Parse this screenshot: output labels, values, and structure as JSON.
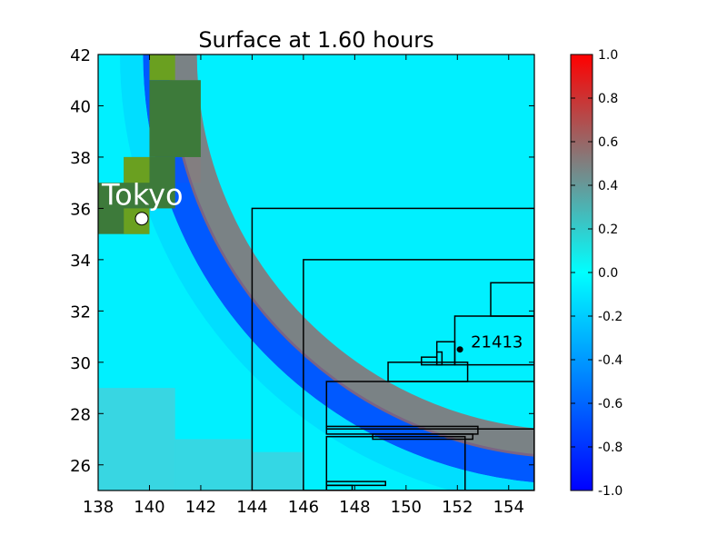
{
  "chart_data": {
    "type": "heatmap",
    "title": "Surface at 1.60 hours",
    "xlabel": "",
    "ylabel": "",
    "xlim": [
      138,
      155
    ],
    "ylim": [
      25,
      42
    ],
    "xticks": [
      138,
      140,
      142,
      144,
      146,
      148,
      150,
      152,
      154
    ],
    "yticks": [
      26,
      28,
      30,
      32,
      34,
      36,
      38,
      40,
      42
    ],
    "grid": false,
    "colorbar": {
      "vmin": -1.0,
      "vmax": 1.0,
      "ticks": [
        "-1.0",
        "-0.8",
        "-0.6",
        "-0.4",
        "-0.2",
        "0.0",
        "0.2",
        "0.4",
        "0.6",
        "0.8",
        "1.0"
      ],
      "colors": [
        "#0000ff",
        "#00ffff",
        "#ff0000"
      ]
    },
    "background_color": "#00f0ff",
    "land_color": "#3d7a3a",
    "coast_color": "#6aa020",
    "land_cells": [
      [
        140.0,
        41.0,
        1,
        1,
        "coast"
      ],
      [
        140.0,
        38.0,
        2,
        3,
        "land"
      ],
      [
        139.0,
        36.0,
        2,
        2,
        "land"
      ],
      [
        138.0,
        35.0,
        2,
        2,
        "land"
      ],
      [
        139.0,
        37.0,
        1,
        1,
        "coast"
      ],
      [
        139.0,
        35.0,
        1,
        1,
        "coast"
      ]
    ],
    "shallow_cells": [
      [
        138.0,
        25.0,
        3,
        4,
        0.18
      ],
      [
        141.0,
        25.0,
        3,
        2,
        0.15
      ],
      [
        144.0,
        25.0,
        2,
        1.5,
        0.12
      ],
      [
        141.0,
        37.0,
        1,
        3,
        0.06
      ]
    ],
    "wave_bands": [
      {
        "amp": -0.8,
        "width": 0.55,
        "offset": 0.0
      },
      {
        "amp": 0.6,
        "width": 0.55,
        "offset": -1.0
      },
      {
        "amp": -0.15,
        "width": 0.45,
        "offset": 1.0
      }
    ],
    "wave_center": [
      156.5,
      42.0
    ],
    "wave_radius": 16.2,
    "refinement_regions": [
      [
        144.0,
        155.0,
        25.0,
        36.0
      ],
      [
        146.0,
        155.0,
        25.0,
        34.0
      ],
      [
        146.9,
        155.0,
        27.4,
        29.25
      ],
      [
        146.9,
        152.8,
        27.2,
        27.5
      ],
      [
        148.7,
        152.6,
        27.0,
        27.2
      ],
      [
        146.9,
        152.3,
        24.5,
        27.1
      ],
      [
        146.9,
        149.2,
        25.2,
        25.35
      ],
      [
        146.9,
        147.9,
        25.0,
        25.2
      ],
      [
        149.3,
        152.4,
        29.25,
        30.0
      ],
      [
        150.6,
        151.2,
        29.9,
        30.2
      ],
      [
        151.2,
        151.4,
        29.9,
        30.4
      ],
      [
        151.2,
        151.9,
        29.9,
        30.8
      ],
      [
        151.9,
        155.0,
        29.9,
        31.8
      ],
      [
        153.3,
        155.0,
        31.8,
        33.1
      ]
    ],
    "markers": [
      {
        "label": "Tokyo",
        "lon": 139.7,
        "lat": 35.6,
        "color": "#ffffff",
        "size": 7
      },
      {
        "label": "21413",
        "lon": 152.1,
        "lat": 30.5,
        "color": "#000000",
        "size": 3
      }
    ]
  }
}
